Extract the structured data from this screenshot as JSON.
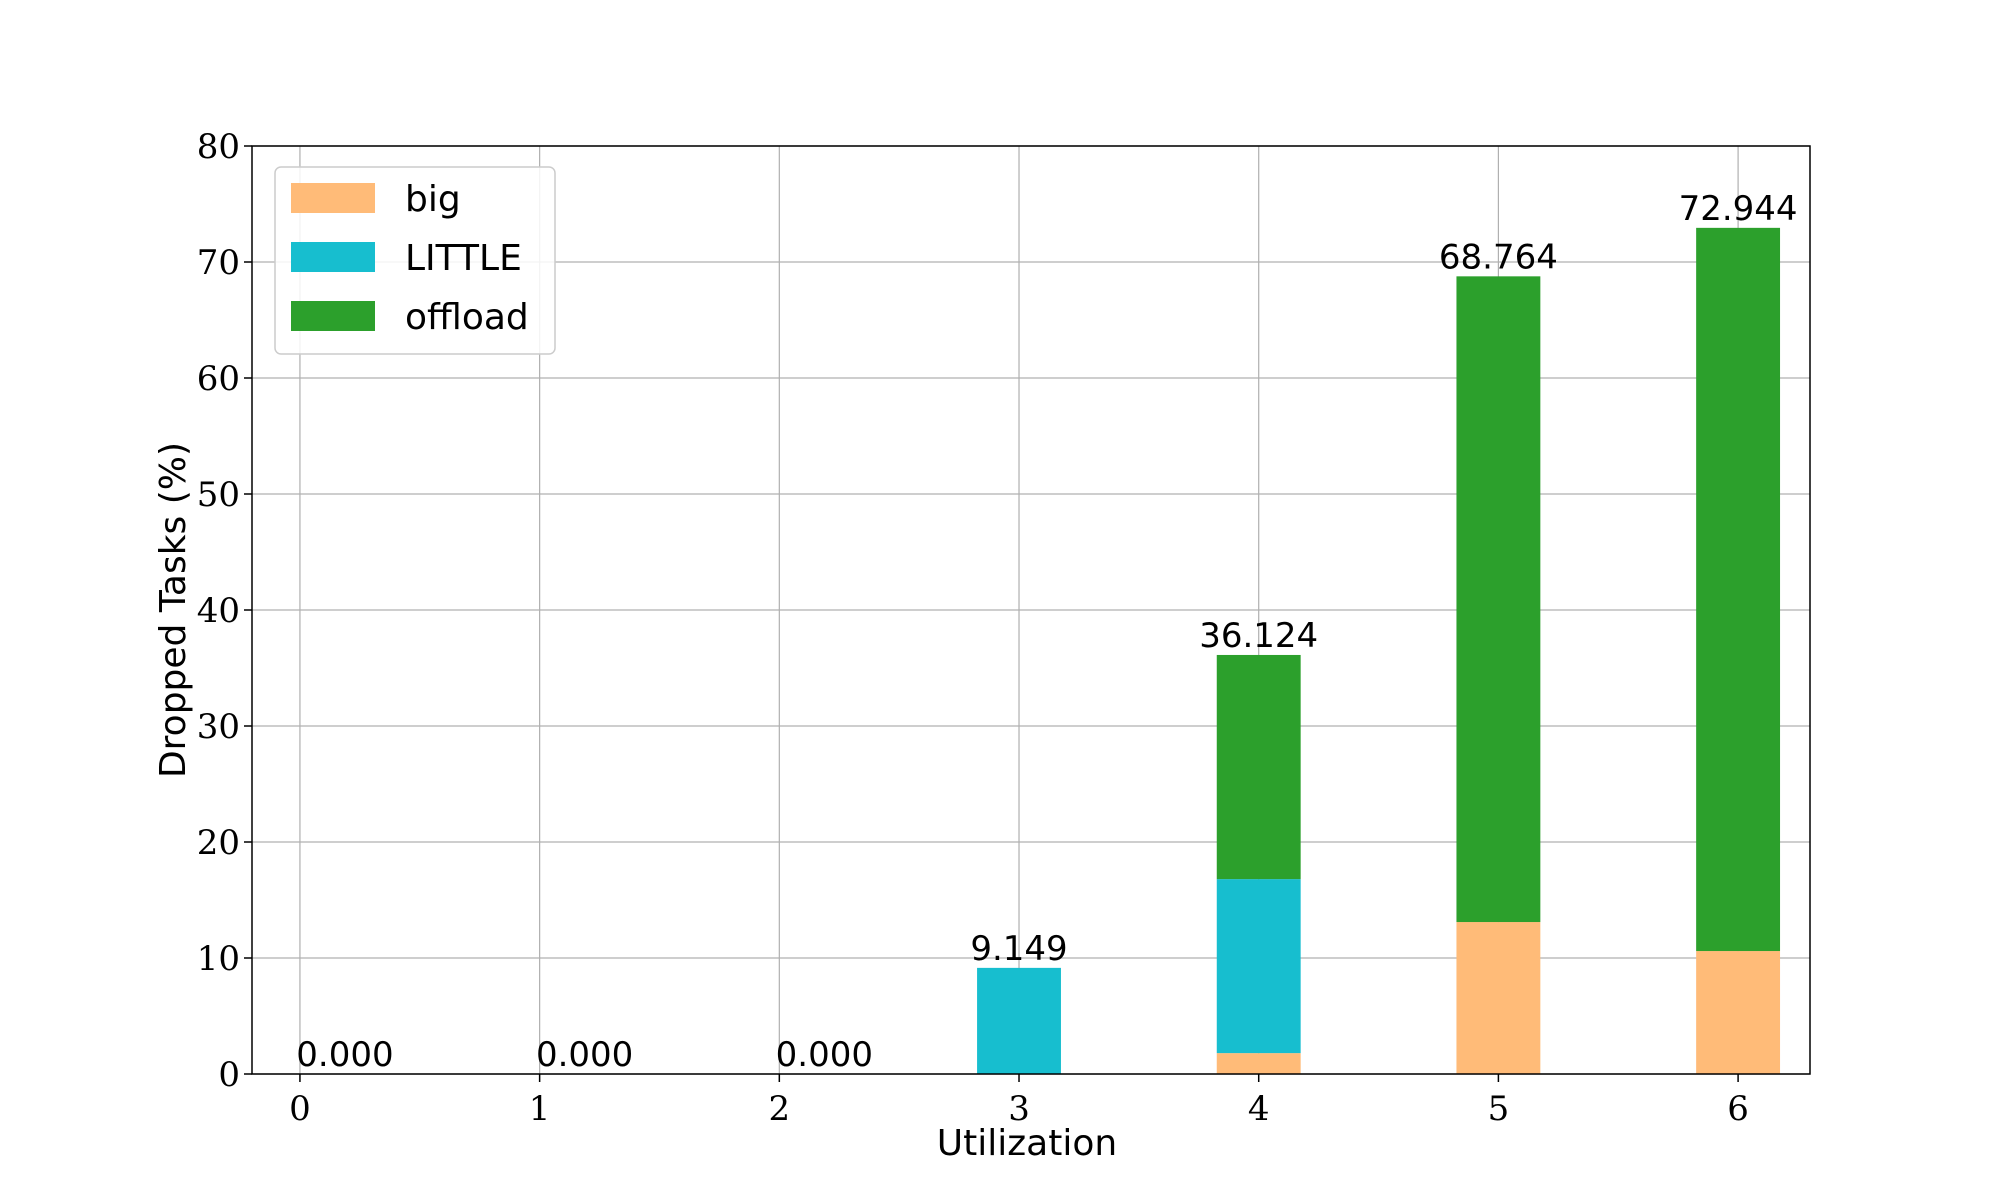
{
  "chart_data": {
    "type": "bar",
    "stacked": true,
    "x": [
      0,
      1,
      2,
      3,
      4,
      5,
      6
    ],
    "xlabel": "Utilization",
    "ylabel": "Dropped Tasks (%)",
    "ylim": [
      0,
      80
    ],
    "yticks": [
      0,
      10,
      20,
      30,
      40,
      50,
      60,
      70,
      80
    ],
    "grid": true,
    "legend_position": "top-left",
    "series": [
      {
        "name": "big",
        "color": "#ffbb78",
        "values": [
          0,
          0,
          0,
          0,
          1.8,
          13.1,
          10.6
        ]
      },
      {
        "name": "LITTLE",
        "color": "#17becf",
        "values": [
          0,
          0,
          0,
          9.149,
          15.0,
          0,
          0
        ]
      },
      {
        "name": "offload",
        "color": "#2ca02c",
        "values": [
          0,
          0,
          0,
          0,
          19.324,
          55.664,
          62.344
        ]
      }
    ],
    "totals": [
      0.0,
      0.0,
      0.0,
      9.149,
      36.124,
      68.764,
      72.944
    ],
    "total_labels": [
      "0.000",
      "0.000",
      "0.000",
      "9.149",
      "36.124",
      "68.764",
      "72.944"
    ]
  }
}
